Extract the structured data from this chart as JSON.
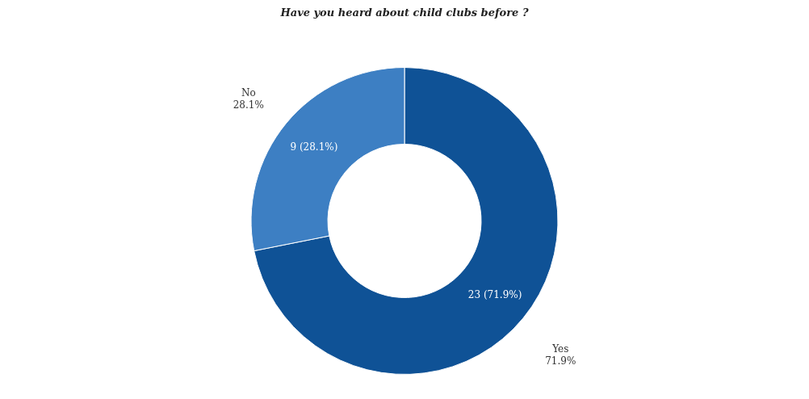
{
  "chart_data": {
    "type": "donut",
    "title": "Have you heard about child clubs before ?",
    "categories": [
      "Yes",
      "No"
    ],
    "values": [
      23,
      9
    ],
    "colors": [
      "#0f5296",
      "#3d7fc3"
    ],
    "value_labels": [
      "23 (71.9%)",
      "9 (28.1%)"
    ],
    "annotations": [
      "71.9%",
      "28.1%"
    ]
  }
}
